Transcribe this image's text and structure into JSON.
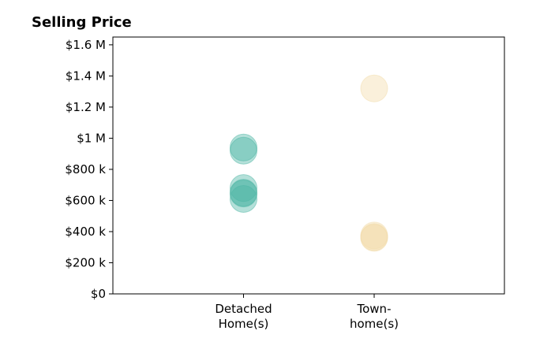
{
  "chart_data": {
    "type": "scatter",
    "title": "Selling Price",
    "xlabel": "",
    "ylabel": "",
    "categories": [
      [
        "Detached",
        "Home(s)"
      ],
      [
        "Town-",
        "home(s)"
      ]
    ],
    "y_ticks": [
      0,
      200000,
      400000,
      600000,
      800000,
      1000000,
      1200000,
      1400000,
      1600000
    ],
    "y_tick_labels": [
      "$0",
      "$200 k",
      "$400 k",
      "$600 k",
      "$800 k",
      "$1 M",
      "$1.2 M",
      "$1.4 M",
      "$1.6 M"
    ],
    "ylim": [
      0,
      1650000
    ],
    "grid": false,
    "legend": "none",
    "series": [
      {
        "category_index": 0,
        "color": "#4db6a4",
        "values": [
          920000,
          940000,
          610000,
          650000,
          680000,
          645000
        ]
      },
      {
        "category_index": 1,
        "color": "#f2dcaa",
        "values": [
          1320000,
          360000,
          375000,
          365000
        ]
      }
    ]
  }
}
